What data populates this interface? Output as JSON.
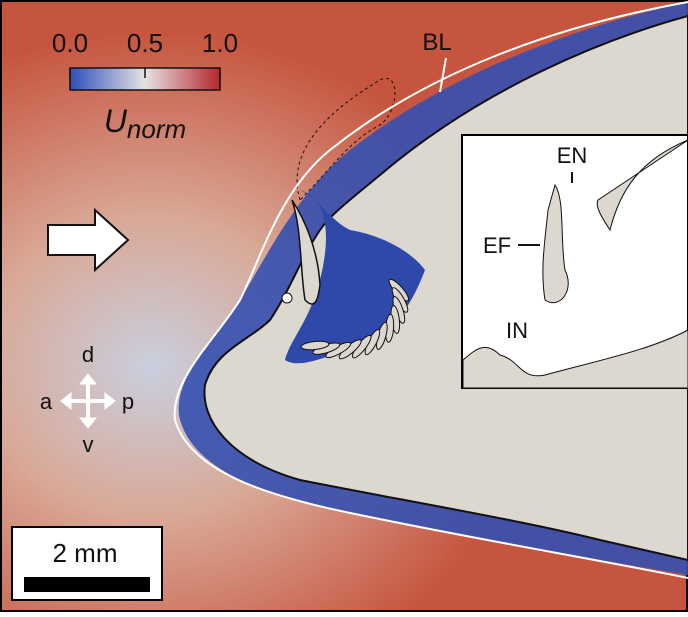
{
  "colorbar": {
    "clim": [
      0,
      1
    ],
    "ticks": [
      {
        "value": 0,
        "label": "0.0"
      },
      {
        "value": 0.5,
        "label": "0.5"
      },
      {
        "value": 1,
        "label": "1.0"
      }
    ],
    "label": "U",
    "label_sub": "norm"
  },
  "labels": {
    "boundary_layer": "BL",
    "inset_en": "EN",
    "inset_ef": "EF",
    "inset_in": "IN"
  },
  "compass": {
    "dorsal": "d",
    "anterior": "a",
    "posterior": "p",
    "ventral": "v"
  },
  "scale_bar": "2 mm"
}
